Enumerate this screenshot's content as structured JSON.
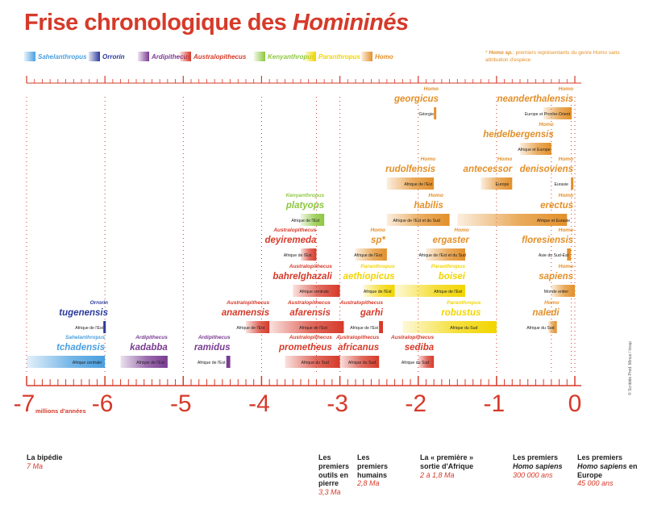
{
  "title": {
    "main": "Frise chronologique des ",
    "emph": "Homininés"
  },
  "note": {
    "star": "*",
    "bold": "Homo sp.",
    "text": ": premiers représentants du genre Homo sans attribution d'espèce"
  },
  "credit": "© Scribble Prod. Minus / Inrap",
  "legend": [
    {
      "label": "Sahelanthropus",
      "color": "#4a9fe0"
    },
    {
      "label": "Orrorin",
      "color": "#2b3a9b"
    },
    {
      "label": "Ardipithecus",
      "color": "#7a3c92"
    },
    {
      "label": "Australopithecus",
      "color": "#d63a2a"
    },
    {
      "label": "Kenyanthropus",
      "color": "#8dc63f"
    },
    {
      "label": "Paranthropus",
      "color": "#f2d500"
    },
    {
      "label": "Homo",
      "color": "#e3902a"
    }
  ],
  "chart_data": {
    "type": "timeline",
    "x_axis": {
      "range": [
        -7,
        0
      ],
      "ticks": [
        -7,
        -6,
        -5,
        -4,
        -3,
        -2,
        -1,
        0
      ],
      "tick_labels": [
        "-7",
        "-6",
        "-5",
        "-4",
        "-3",
        "-2",
        "-1",
        "0"
      ],
      "unit_label": "millions d'années"
    },
    "species": [
      {
        "genus": "Sahelanthropus",
        "species": "tchadensis",
        "region": "Afrique centrale",
        "start": -7.0,
        "end": -6.0
      },
      {
        "genus": "Orrorin",
        "species": "tugenensis",
        "region": "Afrique de l'Est",
        "start": -6.02,
        "end": -5.99
      },
      {
        "genus": "Ardipithecus",
        "species": "kadabba",
        "region": "Afrique de l'Est",
        "start": -5.8,
        "end": -5.2
      },
      {
        "genus": "Ardipithecus",
        "species": "ramidus",
        "region": "Afrique de l'Est",
        "start": -4.45,
        "end": -4.4
      },
      {
        "genus": "Australopithecus",
        "species": "anamensis",
        "region": "Afrique de l'Est",
        "start": -4.2,
        "end": -3.9
      },
      {
        "genus": "Australopithecus",
        "species": "afarensis",
        "region": "Afrique de l'Est",
        "start": -3.9,
        "end": -2.95
      },
      {
        "genus": "Australopithecus",
        "species": "prometheus",
        "region": "Afrique du Sud",
        "start": -3.7,
        "end": -3.0
      },
      {
        "genus": "Australopithecus",
        "species": "deyiremeda",
        "region": "Afrique de l'Est",
        "start": -3.5,
        "end": -3.3
      },
      {
        "genus": "Australopithecus",
        "species": "bahrelghazali",
        "region": "Afrique centrale",
        "start": -3.6,
        "end": -3.0
      },
      {
        "genus": "Australopithecus",
        "species": "africanus",
        "region": "Afrique du Sud",
        "start": -3.0,
        "end": -2.5
      },
      {
        "genus": "Australopithecus",
        "species": "garhi",
        "region": "Afrique de l'Est",
        "start": -2.5,
        "end": -2.45
      },
      {
        "genus": "Australopithecus",
        "species": "sediba",
        "region": "Afrique du Sud",
        "start": -2.0,
        "end": -1.8
      },
      {
        "genus": "Kenyanthropus",
        "species": "platyops",
        "region": "Afrique de l'Est",
        "start": -3.5,
        "end": -3.2
      },
      {
        "genus": "Paranthropus",
        "species": "aethiopicus",
        "region": "Afrique de l'Est",
        "start": -2.7,
        "end": -2.3
      },
      {
        "genus": "Paranthropus",
        "species": "boisei",
        "region": "Afrique de l'Est",
        "start": -2.3,
        "end": -1.4
      },
      {
        "genus": "Paranthropus",
        "species": "robustus",
        "region": "Afrique du Sud",
        "start": -2.2,
        "end": -1.0
      },
      {
        "genus": "Homo",
        "species": "sp*",
        "region": "Afrique de l'Est",
        "start": -2.8,
        "end": -2.4
      },
      {
        "genus": "Homo",
        "species": "habilis",
        "region": "Afrique de l'Est et du Sud",
        "start": -2.4,
        "end": -1.6
      },
      {
        "genus": "Homo",
        "species": "rudolfensis",
        "region": "Afrique de l'Est",
        "start": -2.4,
        "end": -1.8
      },
      {
        "genus": "Homo",
        "species": "ergaster",
        "region": "Afrique de l'Est et du Sud",
        "start": -1.9,
        "end": -1.4
      },
      {
        "genus": "Homo",
        "species": "georgicus",
        "region": "Géorgie",
        "start": -1.8,
        "end": -1.77
      },
      {
        "genus": "Homo",
        "species": "erectus",
        "region": "Afrique et Eurasie",
        "start": -1.5,
        "end": -0.1
      },
      {
        "genus": "Homo",
        "species": "antecessor",
        "region": "Europe",
        "start": -1.2,
        "end": -0.8
      },
      {
        "genus": "Homo",
        "species": "heidelbergensis",
        "region": "Afrique et Europe",
        "start": -0.7,
        "end": -0.3
      },
      {
        "genus": "Homo",
        "species": "neanderthalensis",
        "region": "Europe et Proche-Orient",
        "start": -0.4,
        "end": -0.04
      },
      {
        "genus": "Homo",
        "species": "denisoviens",
        "region": "Eurasie",
        "start": -0.05,
        "end": -0.03
      },
      {
        "genus": "Homo",
        "species": "floresiensis",
        "region": "Asie du Sud-Est",
        "start": -0.1,
        "end": -0.05
      },
      {
        "genus": "Homo",
        "species": "sapiens",
        "region": "Monde entier",
        "start": -0.3,
        "end": 0.0
      },
      {
        "genus": "Homo",
        "species": "naledi",
        "region": "Afrique du Sud",
        "start": -0.34,
        "end": -0.23
      }
    ]
  },
  "milestones": [
    {
      "title": "La bipédie",
      "date": "7 Ma"
    },
    {
      "title": "Les premiers outils en pierre",
      "date": "3,3 Ma"
    },
    {
      "title": "Les premiers humains",
      "date": "2,8 Ma"
    },
    {
      "title": "La « première » sortie d'Afrique",
      "date": "2 à 1,8 Ma"
    },
    {
      "title": "Les premiers",
      "title_emph": "Homo sapiens",
      "date": "300 000 ans"
    },
    {
      "title": "Les premiers",
      "title_emph": "Homo sapiens",
      "title_tail": "en Europe",
      "date": "45 000 ans"
    }
  ]
}
